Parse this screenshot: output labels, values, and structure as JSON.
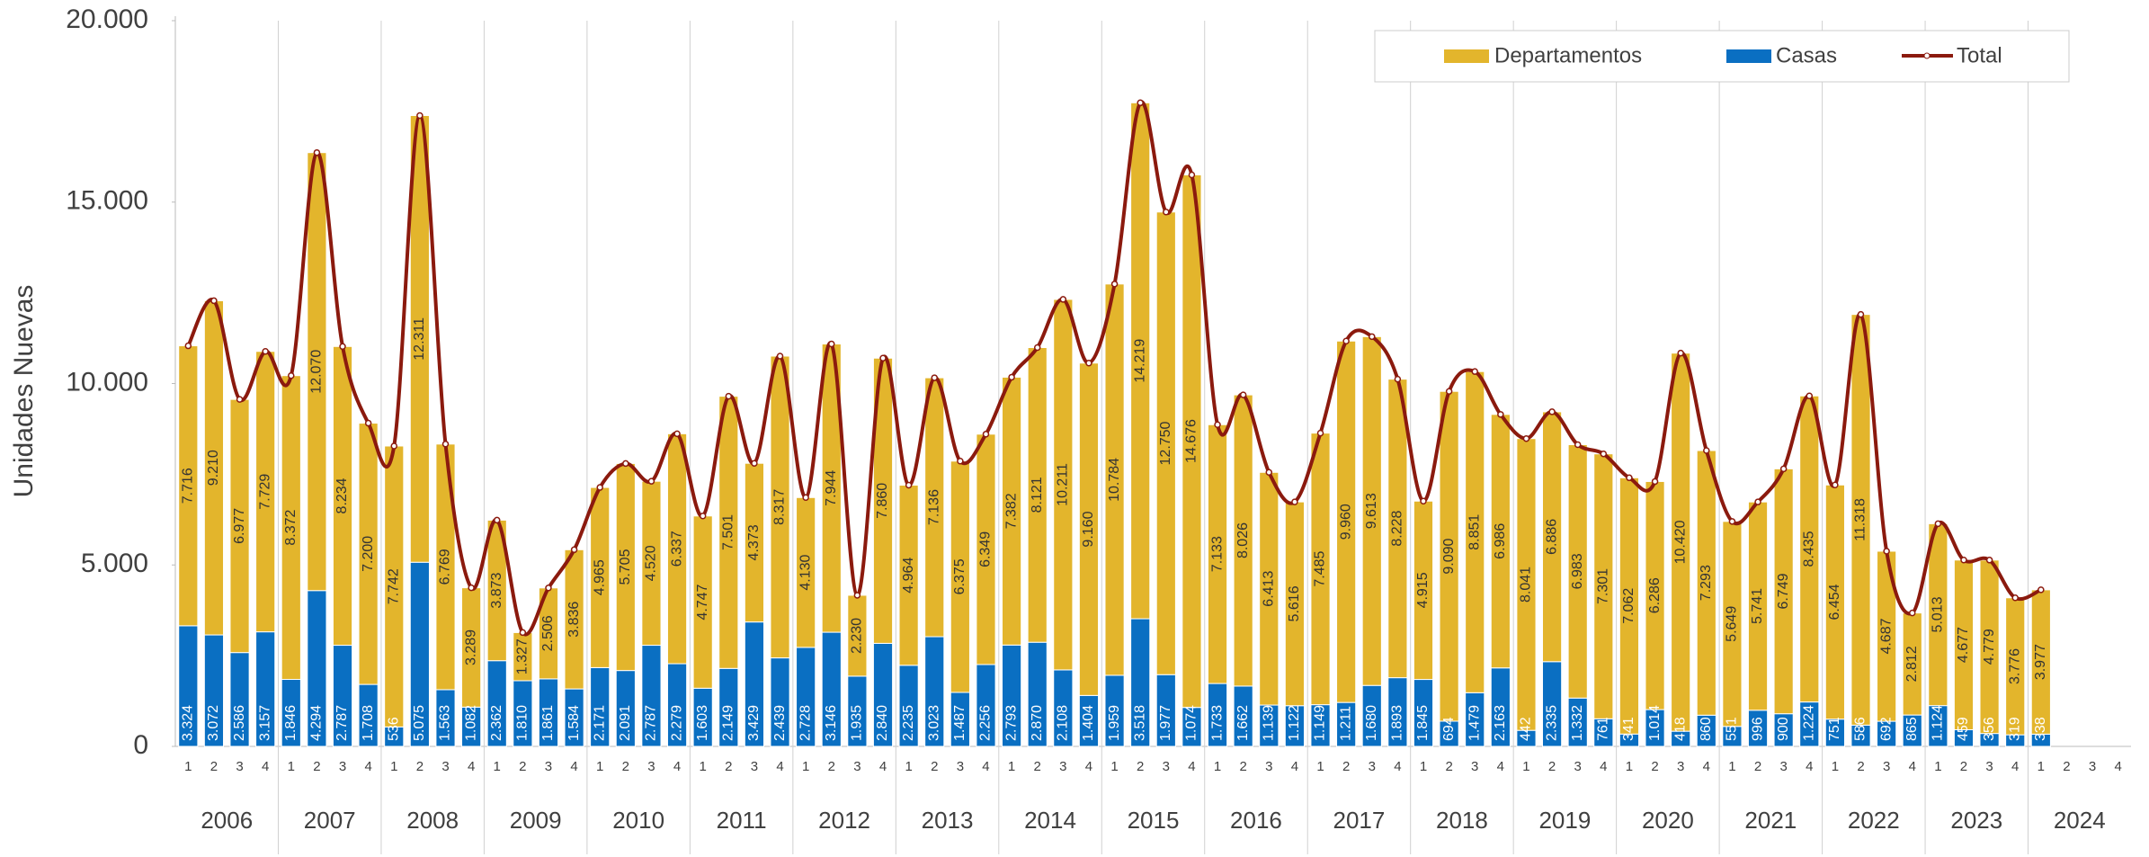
{
  "chart_data": {
    "type": "stacked-bar-line",
    "y_label": "Unidades Nuevas",
    "ylim": [
      0,
      20000
    ],
    "yticks": [
      0,
      {
        "value": 5000,
        "label": "5.000"
      },
      {
        "value": 10000,
        "label": "10.000"
      },
      {
        "value": 15000,
        "label": "15.000"
      },
      {
        "value": 20000,
        "label": "20.000"
      }
    ],
    "categories": [
      "1",
      "2",
      "3",
      "4",
      "1",
      "2",
      "3",
      "4",
      "1",
      "2",
      "3",
      "4",
      "1",
      "2",
      "3",
      "4",
      "1",
      "2",
      "3",
      "4",
      "1",
      "2",
      "3",
      "4",
      "1",
      "2",
      "3",
      "4",
      "1",
      "2",
      "3",
      "4",
      "1",
      "2",
      "3",
      "4",
      "1",
      "2",
      "3",
      "4",
      "1",
      "2",
      "3",
      "4",
      "1",
      "2",
      "3",
      "4",
      "1",
      "2",
      "3",
      "4",
      "1",
      "2",
      "3",
      "4",
      "1",
      "2",
      "3",
      "4",
      "1",
      "2",
      "3",
      "4",
      "1",
      "2",
      "3",
      "4",
      "1",
      "2",
      "3",
      "4",
      "1",
      "2",
      "3",
      "4"
    ],
    "years": [
      "2006",
      "2007",
      "2008",
      "2009",
      "2010",
      "2011",
      "2012",
      "2013",
      "2014",
      "2015",
      "2016",
      "2017",
      "2018",
      "2019",
      "2020",
      "2021",
      "2022",
      "2023",
      "2024"
    ],
    "series": [
      {
        "name": "Casas",
        "color": "#0a6fc2",
        "values": [
          3324,
          3072,
          2586,
          3157,
          1846,
          4294,
          2787,
          1708,
          536,
          5075,
          1563,
          1082,
          2362,
          1810,
          1861,
          1584,
          2171,
          2091,
          2787,
          2279,
          1603,
          2149,
          3429,
          2439,
          2728,
          3146,
          1935,
          2840,
          2235,
          3023,
          1487,
          2256,
          2793,
          2870,
          2108,
          1404,
          1959,
          3518,
          1977,
          1074,
          1733,
          1662,
          1139,
          1122,
          1149,
          1211,
          1680,
          1893,
          1845,
          694,
          1479,
          2163,
          442,
          2335,
          1332,
          761,
          341,
          1014,
          418,
          860,
          551,
          996,
          900,
          1224,
          751,
          586,
          692,
          865,
          1124,
          459,
          356,
          319,
          338,
          null,
          null,
          null
        ],
        "value_labels": [
          "3.324",
          "3.072",
          "2.586",
          "3.157",
          "1.846",
          "4.294",
          "2.787",
          "1.708",
          "536",
          "5.075",
          "1.563",
          "1.082",
          "2.362",
          "1.810",
          "1.861",
          "1.584",
          "2.171",
          "2.091",
          "2.787",
          "2.279",
          "1.603",
          "2.149",
          "3.429",
          "2.439",
          "2.728",
          "3.146",
          "1.935",
          "2.840",
          "2.235",
          "3.023",
          "1.487",
          "2.256",
          "2.793",
          "2.870",
          "2.108",
          "1.404",
          "1.959",
          "3.518",
          "1.977",
          "1.074",
          "1.733",
          "1.662",
          "1.139",
          "1.122",
          "1.149",
          "1.211",
          "1.680",
          "1.893",
          "1.845",
          "694",
          "1.479",
          "2.163",
          "442",
          "2.335",
          "1.332",
          "761",
          "341",
          "1.014",
          "418",
          "860",
          "551",
          "996",
          "900",
          "1.224",
          "751",
          "586",
          "692",
          "865",
          "1.124",
          "459",
          "356",
          "319",
          "338",
          null,
          null,
          null
        ]
      },
      {
        "name": "Departamentos",
        "color": "#e3b52c",
        "values": [
          7716,
          9210,
          6977,
          7729,
          8372,
          12070,
          8234,
          7200,
          7742,
          12311,
          6769,
          3289,
          3873,
          1327,
          2506,
          3836,
          4965,
          5705,
          4520,
          6337,
          4747,
          7501,
          4373,
          8317,
          4130,
          7944,
          2230,
          7860,
          4964,
          7136,
          6375,
          6349,
          7382,
          8121,
          10211,
          9160,
          10784,
          14219,
          12750,
          14676,
          7133,
          8026,
          6413,
          5616,
          7485,
          9960,
          9613,
          8228,
          4915,
          9090,
          8851,
          6986,
          8041,
          6886,
          6983,
          7301,
          7062,
          6286,
          10420,
          7293,
          5649,
          5741,
          6749,
          8435,
          6454,
          11318,
          4687,
          2812,
          5013,
          4677,
          4779,
          3776,
          3977,
          null,
          null,
          null
        ],
        "value_labels": [
          "7.716",
          "9.210",
          "6.977",
          "7.729",
          "8.372",
          "12.070",
          "8.234",
          "7.200",
          "7.742",
          "12.311",
          "6.769",
          "3.289",
          "3.873",
          "1.327",
          "2.506",
          "3.836",
          "4.965",
          "5.705",
          "4.520",
          "6.337",
          "4.747",
          "7.501",
          "4.373",
          "8.317",
          "4.130",
          "7.944",
          "2.230",
          "7.860",
          "4.964",
          "7.136",
          "6.375",
          "6.349",
          "7.382",
          "8.121",
          "10.211",
          "9.160",
          "10.784",
          "14.219",
          "12.750",
          "14.676",
          "7.133",
          "8.026",
          "6.413",
          "5.616",
          "7.485",
          "9.960",
          "9.613",
          "8.228",
          "4.915",
          "9.090",
          "8.851",
          "6.986",
          "8.041",
          "6.886",
          "6.983",
          "7.301",
          "7.062",
          "6.286",
          "10.420",
          "7.293",
          "5.649",
          "5.741",
          "6.749",
          "8.435",
          "6.454",
          "11.318",
          "4.687",
          "2.812",
          "5.013",
          "4.677",
          "4.779",
          "3.776",
          "3.977",
          null,
          null,
          null
        ]
      },
      {
        "name": "Total",
        "color": "#8b1a0e",
        "values": [
          11040,
          12282,
          9563,
          10886,
          10218,
          16364,
          11021,
          8908,
          8278,
          17386,
          8332,
          4371,
          6235,
          3137,
          4367,
          5420,
          7136,
          7796,
          7307,
          8616,
          6350,
          9650,
          7802,
          10756,
          6858,
          11090,
          4165,
          10700,
          7199,
          10159,
          7862,
          8605,
          10175,
          10991,
          12319,
          10564,
          12743,
          17737,
          14727,
          15750,
          8866,
          9688,
          7552,
          6738,
          8634,
          11171,
          11293,
          10121,
          6760,
          9784,
          10330,
          9149,
          8483,
          9221,
          8315,
          8062,
          7403,
          7300,
          10838,
          8153,
          6200,
          6737,
          7649,
          9659,
          7205,
          11904,
          5379,
          3677,
          6137,
          5136,
          5135,
          4095,
          4315,
          null,
          null,
          null
        ]
      }
    ],
    "legend": "top-right"
  }
}
